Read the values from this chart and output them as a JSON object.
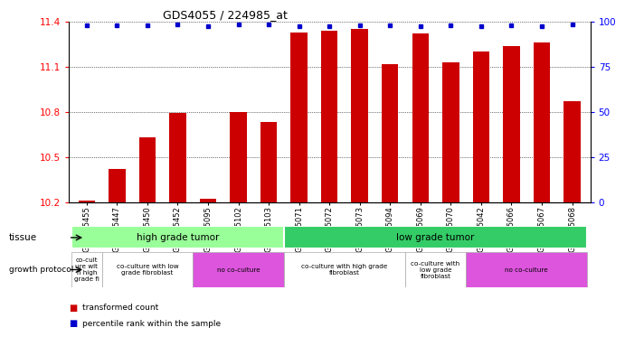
{
  "title": "GDS4055 / 224985_at",
  "samples": [
    "GSM665455",
    "GSM665447",
    "GSM665450",
    "GSM665452",
    "GSM665095",
    "GSM665102",
    "GSM665103",
    "GSM665071",
    "GSM665072",
    "GSM665073",
    "GSM665094",
    "GSM665069",
    "GSM665070",
    "GSM665042",
    "GSM665066",
    "GSM665067",
    "GSM665068"
  ],
  "bar_values": [
    10.21,
    10.42,
    10.63,
    10.79,
    10.22,
    10.8,
    10.73,
    11.33,
    11.34,
    11.35,
    11.12,
    11.32,
    11.13,
    11.2,
    11.24,
    11.26,
    10.87
  ],
  "percentile_values": [
    11.375,
    11.375,
    11.375,
    11.38,
    11.37,
    11.38,
    11.38,
    11.37,
    11.37,
    11.375,
    11.375,
    11.37,
    11.375,
    11.37,
    11.375,
    11.37,
    11.38
  ],
  "ylim": [
    10.2,
    11.4
  ],
  "yticks_left": [
    10.2,
    10.5,
    10.8,
    11.1,
    11.4
  ],
  "yticks_right": [
    0,
    25,
    50,
    75,
    100
  ],
  "bar_color": "#cc0000",
  "dot_color": "#0000cc",
  "tissue_row": [
    {
      "label": "high grade tumor",
      "start": 0,
      "end": 7,
      "color": "#99ff99"
    },
    {
      "label": "low grade tumor",
      "start": 7,
      "end": 17,
      "color": "#33cc66"
    }
  ],
  "growth_row": [
    {
      "label": "co-cult\nure wit\nh high\ngrade fi",
      "start": 0,
      "end": 1,
      "color": "#ffffff"
    },
    {
      "label": "co-culture with low\ngrade fibroblast",
      "start": 1,
      "end": 4,
      "color": "#ffffff"
    },
    {
      "label": "no co-culture",
      "start": 4,
      "end": 7,
      "color": "#dd55dd"
    },
    {
      "label": "co-culture with high grade\nfibroblast",
      "start": 7,
      "end": 11,
      "color": "#ffffff"
    },
    {
      "label": "co-culture with\nlow grade\nfibroblast",
      "start": 11,
      "end": 13,
      "color": "#ffffff"
    },
    {
      "label": "no co-culture",
      "start": 13,
      "end": 17,
      "color": "#dd55dd"
    }
  ],
  "legend_items": [
    {
      "label": "transformed count",
      "color": "#cc0000",
      "marker": "s"
    },
    {
      "label": "percentile rank within the sample",
      "color": "#0000cc",
      "marker": "s"
    }
  ]
}
